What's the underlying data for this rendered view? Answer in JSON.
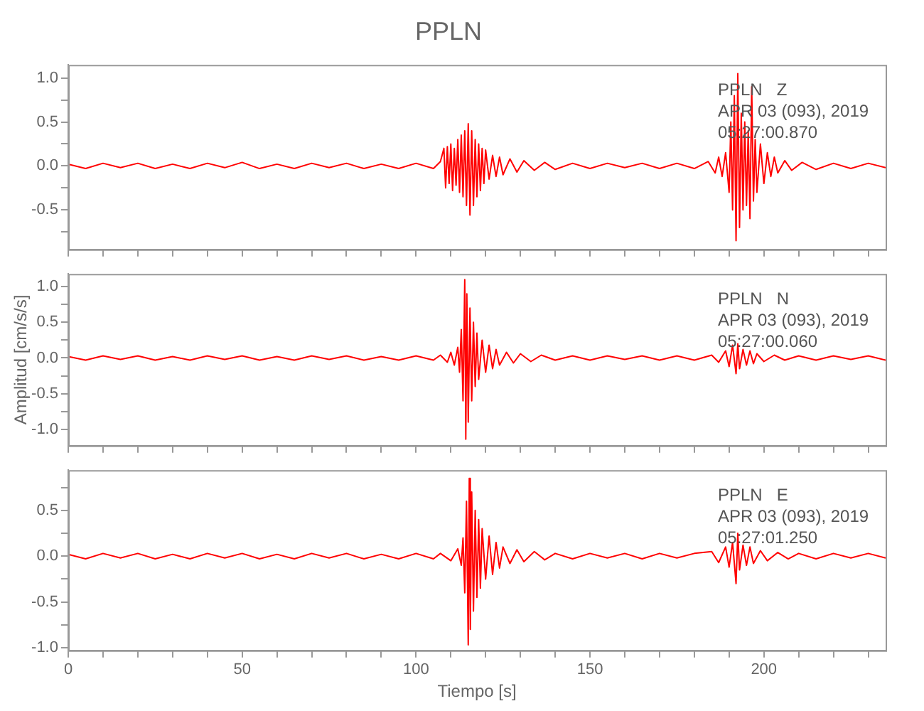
{
  "chart_data": [
    {
      "type": "line",
      "title": "PPLN",
      "tick_labels": "y",
      "xlim": [
        0,
        235
      ],
      "ylim": [
        -0.95,
        1.15
      ],
      "xticks": [
        0,
        {
          "value": 10,
          "label": null
        },
        {
          "value": 20,
          "label": null
        },
        {
          "value": 30,
          "label": null
        },
        {
          "value": 40,
          "label": null
        },
        50,
        {
          "value": 60,
          "label": null
        },
        {
          "value": 70,
          "label": null
        },
        {
          "value": 80,
          "label": null
        },
        {
          "value": 90,
          "label": null
        },
        100,
        {
          "value": 110,
          "label": null
        },
        {
          "value": 120,
          "label": null
        },
        {
          "value": 130,
          "label": null
        },
        {
          "value": 140,
          "label": null
        },
        150,
        {
          "value": 160,
          "label": null
        },
        {
          "value": 170,
          "label": null
        },
        {
          "value": 180,
          "label": null
        },
        {
          "value": 190,
          "label": null
        },
        200,
        {
          "value": 210,
          "label": null
        },
        {
          "value": 220,
          "label": null
        },
        {
          "value": 230,
          "label": null
        }
      ],
      "yticks": [
        {
          "value": -0.75,
          "label": null
        },
        {
          "value": -0.5,
          "label": "-0.5"
        },
        {
          "value": -0.25,
          "label": null
        },
        {
          "value": 0,
          "label": "0.0"
        },
        {
          "value": 0.25,
          "label": null
        },
        {
          "value": 0.5,
          "label": "0.5"
        },
        {
          "value": 0.75,
          "label": null
        },
        {
          "value": 1,
          "label": "1.0"
        }
      ],
      "annotations": [
        "PPLN   Z",
        "APR 03 (093), 2019",
        "05:27:00.870"
      ],
      "x": [
        0,
        5,
        10,
        15,
        20,
        25,
        30,
        35,
        40,
        45,
        50,
        55,
        60,
        65,
        70,
        75,
        80,
        85,
        90,
        95,
        100,
        105,
        107,
        108,
        108.5,
        109,
        109.5,
        110,
        110.5,
        111,
        111.5,
        112,
        112.5,
        113,
        113.5,
        114,
        114.5,
        115,
        115.5,
        116,
        116.5,
        117,
        117.5,
        118,
        118.5,
        119,
        119.5,
        120,
        121,
        122,
        123,
        124,
        125,
        127,
        129,
        131,
        134,
        137,
        140,
        145,
        150,
        155,
        160,
        165,
        170,
        175,
        180,
        184,
        186,
        187,
        188,
        189,
        190,
        190.5,
        191,
        191.5,
        192,
        192.5,
        193,
        193.5,
        194,
        194.5,
        195,
        195.5,
        196,
        196.5,
        197,
        197.5,
        198,
        199,
        200,
        201,
        202,
        203,
        204,
        206,
        208,
        211,
        215,
        220,
        225,
        230,
        235
      ],
      "series": [
        {
          "color": "#ff0000",
          "values": [
            0.02,
            -0.03,
            0.03,
            -0.02,
            0.03,
            -0.03,
            0.02,
            -0.03,
            0.03,
            -0.02,
            0.04,
            -0.03,
            0.02,
            -0.03,
            0.03,
            -0.02,
            0.03,
            -0.03,
            0.02,
            -0.03,
            0.03,
            -0.03,
            0.05,
            0.2,
            -0.25,
            0.22,
            -0.2,
            0.25,
            -0.28,
            0.2,
            -0.22,
            0.3,
            -0.3,
            0.35,
            -0.35,
            0.4,
            -0.45,
            0.48,
            -0.56,
            0.4,
            -0.45,
            0.3,
            -0.35,
            0.25,
            -0.28,
            0.2,
            -0.2,
            0.18,
            -0.15,
            0.12,
            -0.12,
            0.1,
            -0.1,
            0.08,
            -0.07,
            0.06,
            -0.05,
            0.04,
            -0.04,
            0.03,
            -0.03,
            0.03,
            -0.02,
            0.03,
            -0.03,
            0.03,
            -0.03,
            0.05,
            -0.08,
            0.1,
            -0.12,
            0.15,
            -0.3,
            0.5,
            -0.5,
            0.8,
            -0.85,
            1.05,
            -0.7,
            0.6,
            -0.5,
            0.5,
            -0.45,
            0.4,
            -0.6,
            0.9,
            -0.4,
            0.3,
            -0.3,
            0.25,
            -0.2,
            0.15,
            -0.12,
            0.1,
            -0.08,
            0.06,
            -0.05,
            0.04,
            -0.04,
            0.03,
            -0.03,
            0.03,
            -0.02
          ]
        }
      ]
    },
    {
      "type": "line",
      "ylabel": "Amplitud [cm/s/s]",
      "tick_labels": "y",
      "xlim": [
        0,
        235
      ],
      "ylim": [
        -1.23,
        1.18
      ],
      "xticks": [
        0,
        {
          "value": 10,
          "label": null
        },
        {
          "value": 20,
          "label": null
        },
        {
          "value": 30,
          "label": null
        },
        {
          "value": 40,
          "label": null
        },
        50,
        {
          "value": 60,
          "label": null
        },
        {
          "value": 70,
          "label": null
        },
        {
          "value": 80,
          "label": null
        },
        {
          "value": 90,
          "label": null
        },
        100,
        {
          "value": 110,
          "label": null
        },
        {
          "value": 120,
          "label": null
        },
        {
          "value": 130,
          "label": null
        },
        {
          "value": 140,
          "label": null
        },
        150,
        {
          "value": 160,
          "label": null
        },
        {
          "value": 170,
          "label": null
        },
        {
          "value": 180,
          "label": null
        },
        {
          "value": 190,
          "label": null
        },
        200,
        {
          "value": 210,
          "label": null
        },
        {
          "value": 220,
          "label": null
        },
        {
          "value": 230,
          "label": null
        }
      ],
      "yticks": [
        {
          "value": -1,
          "label": "-1.0"
        },
        {
          "value": -0.75,
          "label": null
        },
        {
          "value": -0.5,
          "label": "-0.5"
        },
        {
          "value": -0.25,
          "label": null
        },
        {
          "value": 0,
          "label": "0.0"
        },
        {
          "value": 0.25,
          "label": null
        },
        {
          "value": 0.5,
          "label": "0.5"
        },
        {
          "value": 0.75,
          "label": null
        },
        {
          "value": 1,
          "label": "1.0"
        }
      ],
      "annotations": [
        "PPLN   N",
        "APR 03 (093), 2019",
        "05:27:00.060"
      ],
      "x": [
        0,
        5,
        10,
        15,
        20,
        25,
        30,
        35,
        40,
        45,
        50,
        55,
        60,
        65,
        70,
        75,
        80,
        85,
        90,
        95,
        100,
        105,
        107,
        109,
        110,
        111,
        112,
        112.5,
        113,
        113.5,
        114,
        114.3,
        114.6,
        115,
        115.5,
        116,
        116.5,
        117,
        117.5,
        118,
        119,
        120,
        121,
        122,
        123,
        124,
        126,
        128,
        130,
        133,
        136,
        140,
        145,
        150,
        155,
        160,
        165,
        170,
        175,
        180,
        185,
        187,
        189,
        190,
        191,
        192,
        192.5,
        193,
        194,
        195,
        196,
        197,
        198,
        200,
        203,
        206,
        210,
        215,
        220,
        225,
        230,
        235
      ],
      "series": [
        {
          "color": "#ff0000",
          "values": [
            0.02,
            -0.03,
            0.03,
            -0.02,
            0.03,
            -0.03,
            0.02,
            -0.03,
            0.03,
            -0.02,
            0.03,
            -0.03,
            0.02,
            -0.03,
            0.03,
            -0.02,
            0.03,
            -0.03,
            0.02,
            -0.03,
            0.03,
            -0.03,
            0.04,
            -0.06,
            0.08,
            -0.1,
            0.15,
            -0.2,
            0.4,
            -0.6,
            1.1,
            -1.14,
            0.9,
            -0.9,
            0.7,
            -0.6,
            0.5,
            -0.4,
            0.35,
            -0.3,
            0.25,
            -0.2,
            0.18,
            -0.15,
            0.12,
            -0.1,
            0.08,
            -0.07,
            0.06,
            -0.05,
            0.04,
            -0.03,
            0.03,
            -0.03,
            0.03,
            -0.02,
            0.03,
            -0.03,
            0.03,
            -0.03,
            0.04,
            -0.06,
            0.1,
            -0.12,
            0.18,
            -0.22,
            0.2,
            -0.15,
            0.12,
            -0.1,
            0.1,
            -0.08,
            0.06,
            -0.05,
            0.04,
            -0.03,
            0.03,
            -0.03,
            0.03,
            -0.02,
            0.03,
            -0.03
          ]
        }
      ]
    },
    {
      "type": "line",
      "xlabel": "Tiempo [s]",
      "xlim": [
        0,
        235
      ],
      "ylim": [
        -1.03,
        0.94
      ],
      "xticks": [
        0,
        {
          "value": 10,
          "label": null
        },
        {
          "value": 20,
          "label": null
        },
        {
          "value": 30,
          "label": null
        },
        {
          "value": 40,
          "label": null
        },
        50,
        {
          "value": 60,
          "label": null
        },
        {
          "value": 70,
          "label": null
        },
        {
          "value": 80,
          "label": null
        },
        {
          "value": 90,
          "label": null
        },
        100,
        {
          "value": 110,
          "label": null
        },
        {
          "value": 120,
          "label": null
        },
        {
          "value": 130,
          "label": null
        },
        {
          "value": 140,
          "label": null
        },
        150,
        {
          "value": 160,
          "label": null
        },
        {
          "value": 170,
          "label": null
        },
        {
          "value": 180,
          "label": null
        },
        {
          "value": 190,
          "label": null
        },
        200,
        {
          "value": 210,
          "label": null
        },
        {
          "value": 220,
          "label": null
        },
        {
          "value": 230,
          "label": null
        }
      ],
      "yticks": [
        {
          "value": -1,
          "label": "-1.0"
        },
        {
          "value": -0.75,
          "label": null
        },
        {
          "value": -0.5,
          "label": "-0.5"
        },
        {
          "value": -0.25,
          "label": null
        },
        {
          "value": 0,
          "label": "0.0"
        },
        {
          "value": 0.25,
          "label": null
        },
        {
          "value": 0.5,
          "label": "0.5"
        },
        {
          "value": 0.75,
          "label": null
        }
      ],
      "annotations": [
        "PPLN   E",
        "APR 03 (093), 2019",
        "05:27:01.250"
      ],
      "x": [
        0,
        5,
        10,
        15,
        20,
        25,
        30,
        35,
        40,
        45,
        50,
        55,
        60,
        65,
        70,
        75,
        80,
        85,
        90,
        95,
        100,
        105,
        107,
        110,
        112,
        113,
        113.5,
        114,
        114.5,
        115,
        115.3,
        115.6,
        116,
        116.5,
        117,
        117.5,
        118,
        118.5,
        119,
        120,
        121,
        122,
        123,
        124,
        125,
        127,
        129,
        131,
        134,
        137,
        140,
        145,
        150,
        155,
        160,
        165,
        170,
        175,
        180,
        185,
        187,
        189,
        190,
        191,
        192,
        192.5,
        193,
        194,
        195,
        196,
        197,
        199,
        201,
        204,
        207,
        210,
        215,
        220,
        225,
        230,
        235
      ],
      "series": [
        {
          "color": "#ff0000",
          "values": [
            0.02,
            -0.03,
            0.03,
            -0.02,
            0.03,
            -0.03,
            0.02,
            -0.03,
            0.03,
            -0.02,
            0.03,
            -0.03,
            0.02,
            -0.03,
            0.03,
            -0.02,
            0.03,
            -0.03,
            0.02,
            -0.03,
            0.03,
            -0.03,
            0.03,
            -0.05,
            0.08,
            -0.1,
            0.2,
            -0.4,
            0.6,
            -0.97,
            0.85,
            -0.8,
            0.7,
            -0.6,
            0.5,
            -0.45,
            0.4,
            -0.35,
            0.3,
            -0.25,
            0.22,
            -0.2,
            0.15,
            -0.13,
            0.1,
            -0.08,
            0.07,
            -0.06,
            0.05,
            -0.04,
            0.03,
            -0.03,
            0.03,
            -0.02,
            0.03,
            -0.03,
            0.03,
            -0.02,
            0.03,
            0.05,
            -0.07,
            0.1,
            -0.12,
            0.15,
            -0.3,
            0.25,
            -0.15,
            0.12,
            -0.1,
            0.1,
            -0.08,
            0.06,
            -0.05,
            0.04,
            -0.03,
            0.03,
            -0.03,
            0.03,
            -0.02,
            0.03,
            -0.02
          ]
        }
      ]
    }
  ]
}
